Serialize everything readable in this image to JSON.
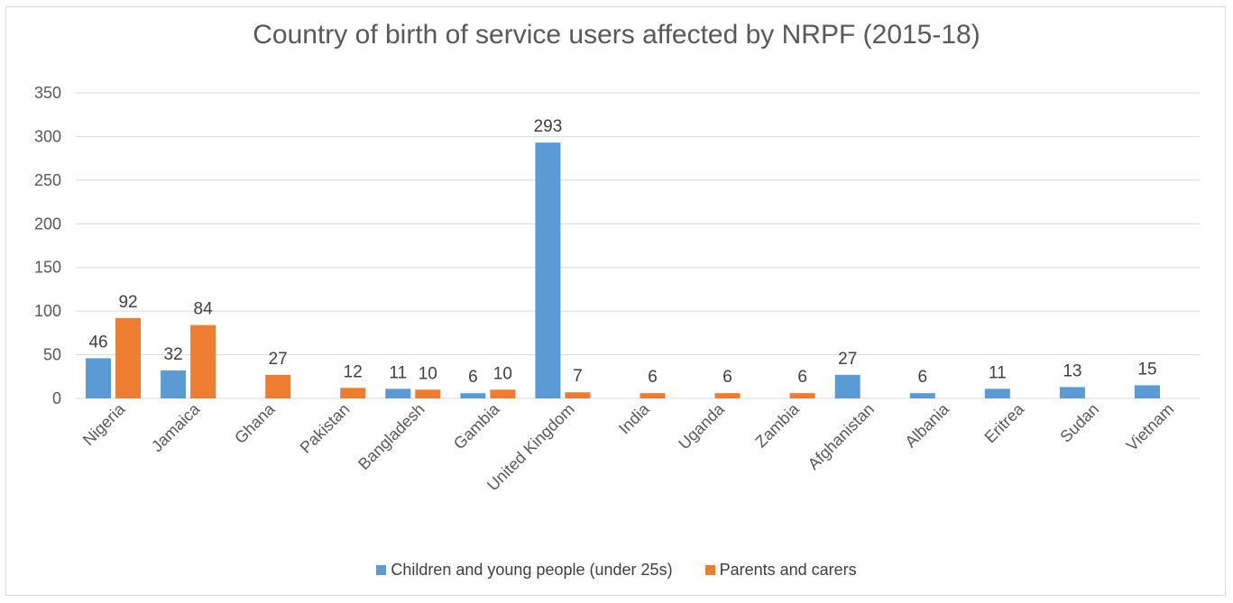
{
  "chart_data": {
    "type": "bar",
    "title": "Country of birth of service users affected by NRPF (2015-18)",
    "categories": [
      "Nigeria",
      "Jamaica",
      "Ghana",
      "Pakistan",
      "Bangladesh",
      "Gambia",
      "United Kingdom",
      "India",
      "Uganda",
      "Zambia",
      "Afghanistan",
      "Albania",
      "Eritrea",
      "Sudan",
      "Vietnam"
    ],
    "series": [
      {
        "name": "Children and young people (under 25s)",
        "color": "#5b9bd5",
        "values": [
          46,
          32,
          null,
          null,
          11,
          6,
          293,
          null,
          null,
          null,
          27,
          6,
          11,
          13,
          15
        ]
      },
      {
        "name": "Parents and carers",
        "color": "#ed7d31",
        "values": [
          92,
          84,
          27,
          12,
          10,
          10,
          7,
          6,
          6,
          6,
          null,
          null,
          null,
          null,
          null
        ]
      }
    ],
    "ylim": [
      0,
      350
    ],
    "yticks": [
      0,
      50,
      100,
      150,
      200,
      250,
      300,
      350
    ],
    "grid": true,
    "legend": "bottom"
  }
}
